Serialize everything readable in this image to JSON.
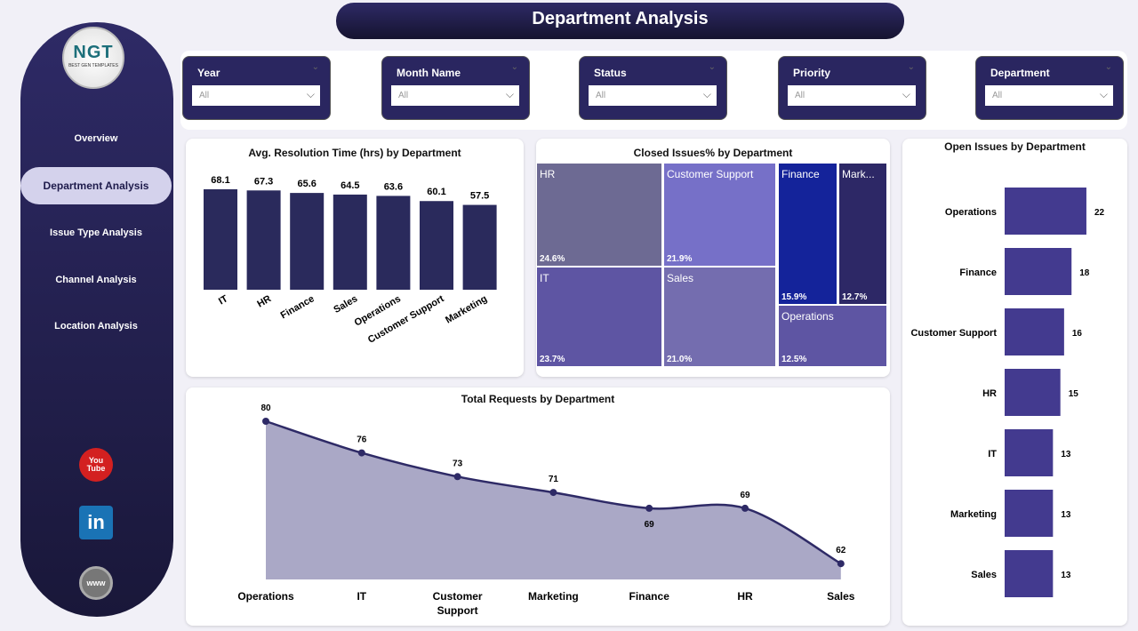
{
  "title": "Department Analysis",
  "logo": {
    "text": "NGT",
    "sub": "BEST GEN TEMPLATES"
  },
  "nav": [
    {
      "label": "Overview"
    },
    {
      "label": "Department Analysis",
      "selected": true
    },
    {
      "label": "Issue Type Analysis"
    },
    {
      "label": "Channel Analysis"
    },
    {
      "label": "Location Analysis"
    }
  ],
  "social": [
    {
      "icon": "youtube-icon",
      "label": "You Tube"
    },
    {
      "icon": "linkedin-icon",
      "label": "in"
    },
    {
      "icon": "www-icon",
      "label": "www"
    }
  ],
  "filters": [
    {
      "label": "Year",
      "value": "All"
    },
    {
      "label": "Month Name",
      "value": "All"
    },
    {
      "label": "Status",
      "value": "All"
    },
    {
      "label": "Priority",
      "value": "All"
    },
    {
      "label": "Department",
      "value": "All"
    }
  ],
  "colors": {
    "accent": "#2a2660",
    "bar": "#2a2a5c",
    "hbar": "#433a8f",
    "area": "#aaa8c6",
    "line": "#2e2a66"
  },
  "chart_data": [
    {
      "type": "bar",
      "title": "Avg. Resolution Time (hrs) by Department",
      "categories": [
        "IT",
        "HR",
        "Finance",
        "Sales",
        "Operations",
        "Customer Support",
        "Marketing"
      ],
      "values": [
        68.1,
        67.3,
        65.6,
        64.5,
        63.6,
        60.1,
        57.5
      ]
    },
    {
      "type": "treemap",
      "title": "Closed Issues% by Department",
      "items": [
        {
          "label": "HR",
          "display": "HR",
          "value": "24.6%",
          "color": "#6d6a93"
        },
        {
          "label": "Customer Support",
          "display": "Customer Support",
          "value": "21.9%",
          "color": "#7670c8"
        },
        {
          "label": "Finance",
          "display": "Finance",
          "value": "15.9%",
          "color": "#14239a"
        },
        {
          "label": "Marketing",
          "display": "Mark...",
          "value": "12.7%",
          "color": "#2d2866"
        },
        {
          "label": "IT",
          "display": "IT",
          "value": "23.7%",
          "color": "#5e55a3"
        },
        {
          "label": "Sales",
          "display": "Sales",
          "value": "21.0%",
          "color": "#746daf"
        },
        {
          "label": "Operations",
          "display": "Operations",
          "value": "12.5%",
          "color": "#5e55a3"
        }
      ]
    },
    {
      "type": "bar-horizontal",
      "title": "Open Issues by Department",
      "categories": [
        "Operations",
        "Finance",
        "Customer Support",
        "HR",
        "IT",
        "Marketing",
        "Sales"
      ],
      "values": [
        22,
        18,
        16,
        15,
        13,
        13,
        13
      ]
    },
    {
      "type": "area",
      "title": "Total Requests by Department",
      "categories": [
        "Operations",
        "IT",
        "Customer Support",
        "Marketing",
        "Finance",
        "HR",
        "Sales"
      ],
      "values": [
        80,
        76,
        73,
        71,
        69,
        69,
        62
      ],
      "ylim": [
        60,
        80
      ]
    }
  ]
}
